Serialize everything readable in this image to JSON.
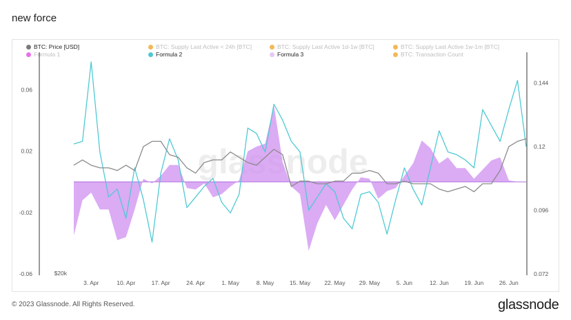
{
  "header": {
    "title": "new force"
  },
  "legend": [
    {
      "label": "BTC: Price [USD]",
      "color": "#7a7a7a",
      "active": true
    },
    {
      "label": "BTC: Supply Last Active < 24h [BTC]",
      "color": "#f0a020",
      "active": false
    },
    {
      "label": "BTC: Supply Last Active 1d-1w [BTC]",
      "color": "#f0a020",
      "active": false
    },
    {
      "label": "BTC: Supply Last Active 1w-1m [BTC]",
      "color": "#f0a020",
      "active": false
    },
    {
      "label": "Formula 1",
      "color": "#e040e0",
      "active": false
    },
    {
      "label": "Formula 2",
      "color": "#4ec9d4",
      "active": true
    },
    {
      "label": "Formula 3",
      "color": "#e6c8f5",
      "active": true
    },
    {
      "label": "BTC: Transaction Count",
      "color": "#f0a020",
      "active": false
    }
  ],
  "footer": {
    "copyright": "© 2023 Glassnode. All Rights Reserved.",
    "brand": "glassnode"
  },
  "watermark": "glassnode",
  "chart_data": {
    "type": "line",
    "title": "new force",
    "x": [
      "Mar 29",
      "Apr 1",
      "Apr 3",
      "Apr 5",
      "Apr 7",
      "Apr 9",
      "Apr 10",
      "Apr 12",
      "Apr 14",
      "Apr 15",
      "Apr 17",
      "Apr 19",
      "Apr 20",
      "Apr 22",
      "Apr 24",
      "Apr 25",
      "Apr 27",
      "Apr 29",
      "May 1",
      "May 2",
      "May 4",
      "May 5",
      "May 7",
      "May 8",
      "May 10",
      "May 12",
      "May 13",
      "May 15",
      "May 17",
      "May 18",
      "May 20",
      "May 22",
      "May 23",
      "May 25",
      "May 27",
      "May 29",
      "May 30",
      "Jun 1",
      "Jun 3",
      "Jun 4",
      "Jun 6",
      "Jun 8",
      "Jun 10",
      "Jun 12",
      "Jun 13",
      "Jun 15",
      "Jun 17",
      "Jun 19",
      "Jun 20",
      "Jun 22",
      "Jun 24",
      "Jun 26",
      "Jun 27"
    ],
    "x_tick_labels": [
      "3. Apr",
      "10. Apr",
      "17. Apr",
      "24. Apr",
      "1. May",
      "8. May",
      "15. May",
      "22. May",
      "29. May",
      "5. Jun",
      "12. Jun",
      "19. Jun",
      "26. Jun"
    ],
    "x_tick_index": [
      2,
      6,
      10,
      14,
      18,
      22,
      26,
      30,
      34,
      38,
      42,
      46,
      50
    ],
    "left_axis": {
      "ticks": [
        0.06,
        0.02,
        -0.02,
        -0.06
      ],
      "range": [
        -0.06,
        0.08
      ],
      "bottom_label": "$20k"
    },
    "right_axis": {
      "ticks": [
        0.144,
        0.12,
        0.096,
        0.072
      ],
      "range": [
        0.072,
        0.153
      ]
    },
    "series": [
      {
        "name": "Formula 3",
        "type": "area",
        "axis": "left",
        "color": "#cf8ff0",
        "values": [
          -0.035,
          -0.012,
          -0.007,
          -0.018,
          -0.018,
          -0.038,
          -0.036,
          -0.018,
          0.002,
          -0.001,
          0.004,
          0.011,
          0.011,
          -0.004,
          -0.005,
          -0.001,
          -0.01,
          -0.008,
          -0.003,
          0.001,
          0.02,
          0.023,
          0.025,
          0.05,
          0.013,
          -0.003,
          -0.008,
          -0.045,
          -0.027,
          -0.015,
          -0.025,
          -0.015,
          -0.005,
          0.003,
          0.002,
          -0.011,
          -0.006,
          -0.004,
          0.004,
          0.012,
          0.027,
          0.022,
          0.012,
          0.016,
          0.009,
          0.009,
          0.002,
          0.008,
          0.014,
          0.016,
          0.001,
          0.0,
          0.0
        ]
      },
      {
        "name": "Formula 2",
        "type": "line",
        "axis": "right",
        "color": "#4ec9d4",
        "values": [
          0.121,
          0.122,
          0.152,
          0.118,
          0.101,
          0.104,
          0.093,
          0.112,
          0.1,
          0.084,
          0.11,
          0.123,
          0.115,
          0.097,
          0.101,
          0.105,
          0.108,
          0.099,
          0.095,
          0.102,
          0.127,
          0.125,
          0.118,
          0.136,
          0.13,
          0.122,
          0.118,
          0.096,
          0.101,
          0.106,
          0.103,
          0.093,
          0.089,
          0.102,
          0.103,
          0.099,
          0.087,
          0.1,
          0.112,
          0.104,
          0.098,
          0.112,
          0.126,
          0.118,
          0.117,
          0.115,
          0.112,
          0.134,
          0.128,
          0.122,
          0.134,
          0.145,
          0.12
        ]
      },
      {
        "name": "BTC: Price [USD]",
        "type": "line",
        "axis": "right",
        "color": "#8a8a8a",
        "values": [
          0.113,
          0.115,
          0.113,
          0.112,
          0.112,
          0.111,
          0.113,
          0.111,
          0.12,
          0.122,
          0.122,
          0.117,
          0.116,
          0.112,
          0.11,
          0.114,
          0.115,
          0.115,
          0.118,
          0.116,
          0.114,
          0.113,
          0.116,
          0.119,
          0.117,
          0.105,
          0.107,
          0.107,
          0.106,
          0.106,
          0.107,
          0.107,
          0.11,
          0.11,
          0.111,
          0.11,
          0.106,
          0.106,
          0.107,
          0.106,
          0.106,
          0.106,
          0.104,
          0.103,
          0.104,
          0.105,
          0.103,
          0.106,
          0.106,
          0.111,
          0.12,
          0.122,
          0.123
        ]
      }
    ],
    "grid": false
  }
}
